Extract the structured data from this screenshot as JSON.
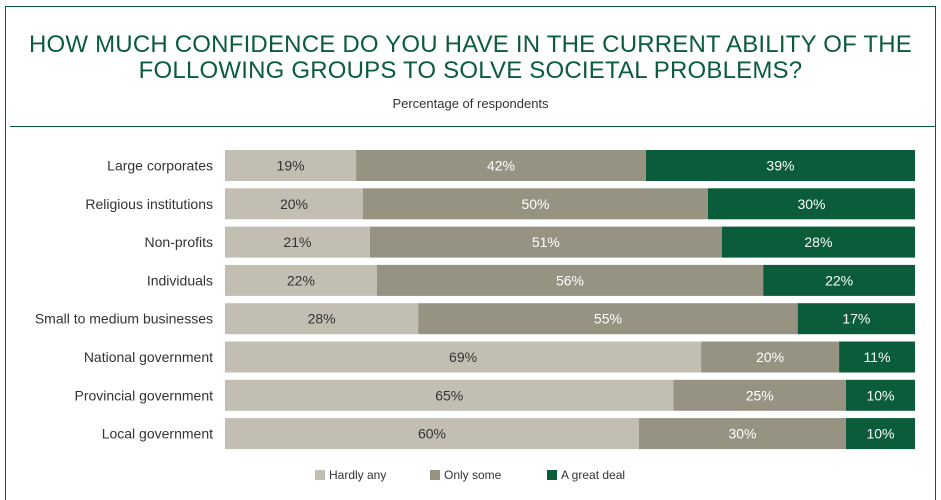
{
  "chart_data": {
    "type": "bar",
    "orientation": "horizontal",
    "stacked": true,
    "title": "HOW MUCH CONFIDENCE DO YOU HAVE IN THE CURRENT ABILITY OF THE FOLLOWING GROUPS TO SOLVE SOCIETAL PROBLEMS?",
    "subtitle": "Percentage of respondents",
    "categories": [
      "Large corporates",
      "Religious institutions",
      "Non-profits",
      "Individuals",
      "Small to medium businesses",
      "National government",
      "Provincial government",
      "Local government"
    ],
    "series": [
      {
        "name": "Hardly any",
        "color": "#c2bfb2",
        "values": [
          19,
          20,
          21,
          22,
          28,
          69,
          65,
          60
        ]
      },
      {
        "name": "Only some",
        "color": "#979383",
        "values": [
          42,
          50,
          51,
          56,
          55,
          20,
          25,
          30
        ]
      },
      {
        "name": "A great deal",
        "color": "#0b5c3b",
        "values": [
          39,
          30,
          28,
          22,
          17,
          11,
          10,
          10
        ]
      }
    ],
    "value_suffix": "%",
    "xlim": [
      0,
      100
    ],
    "grid": false,
    "legend_position": "bottom"
  }
}
